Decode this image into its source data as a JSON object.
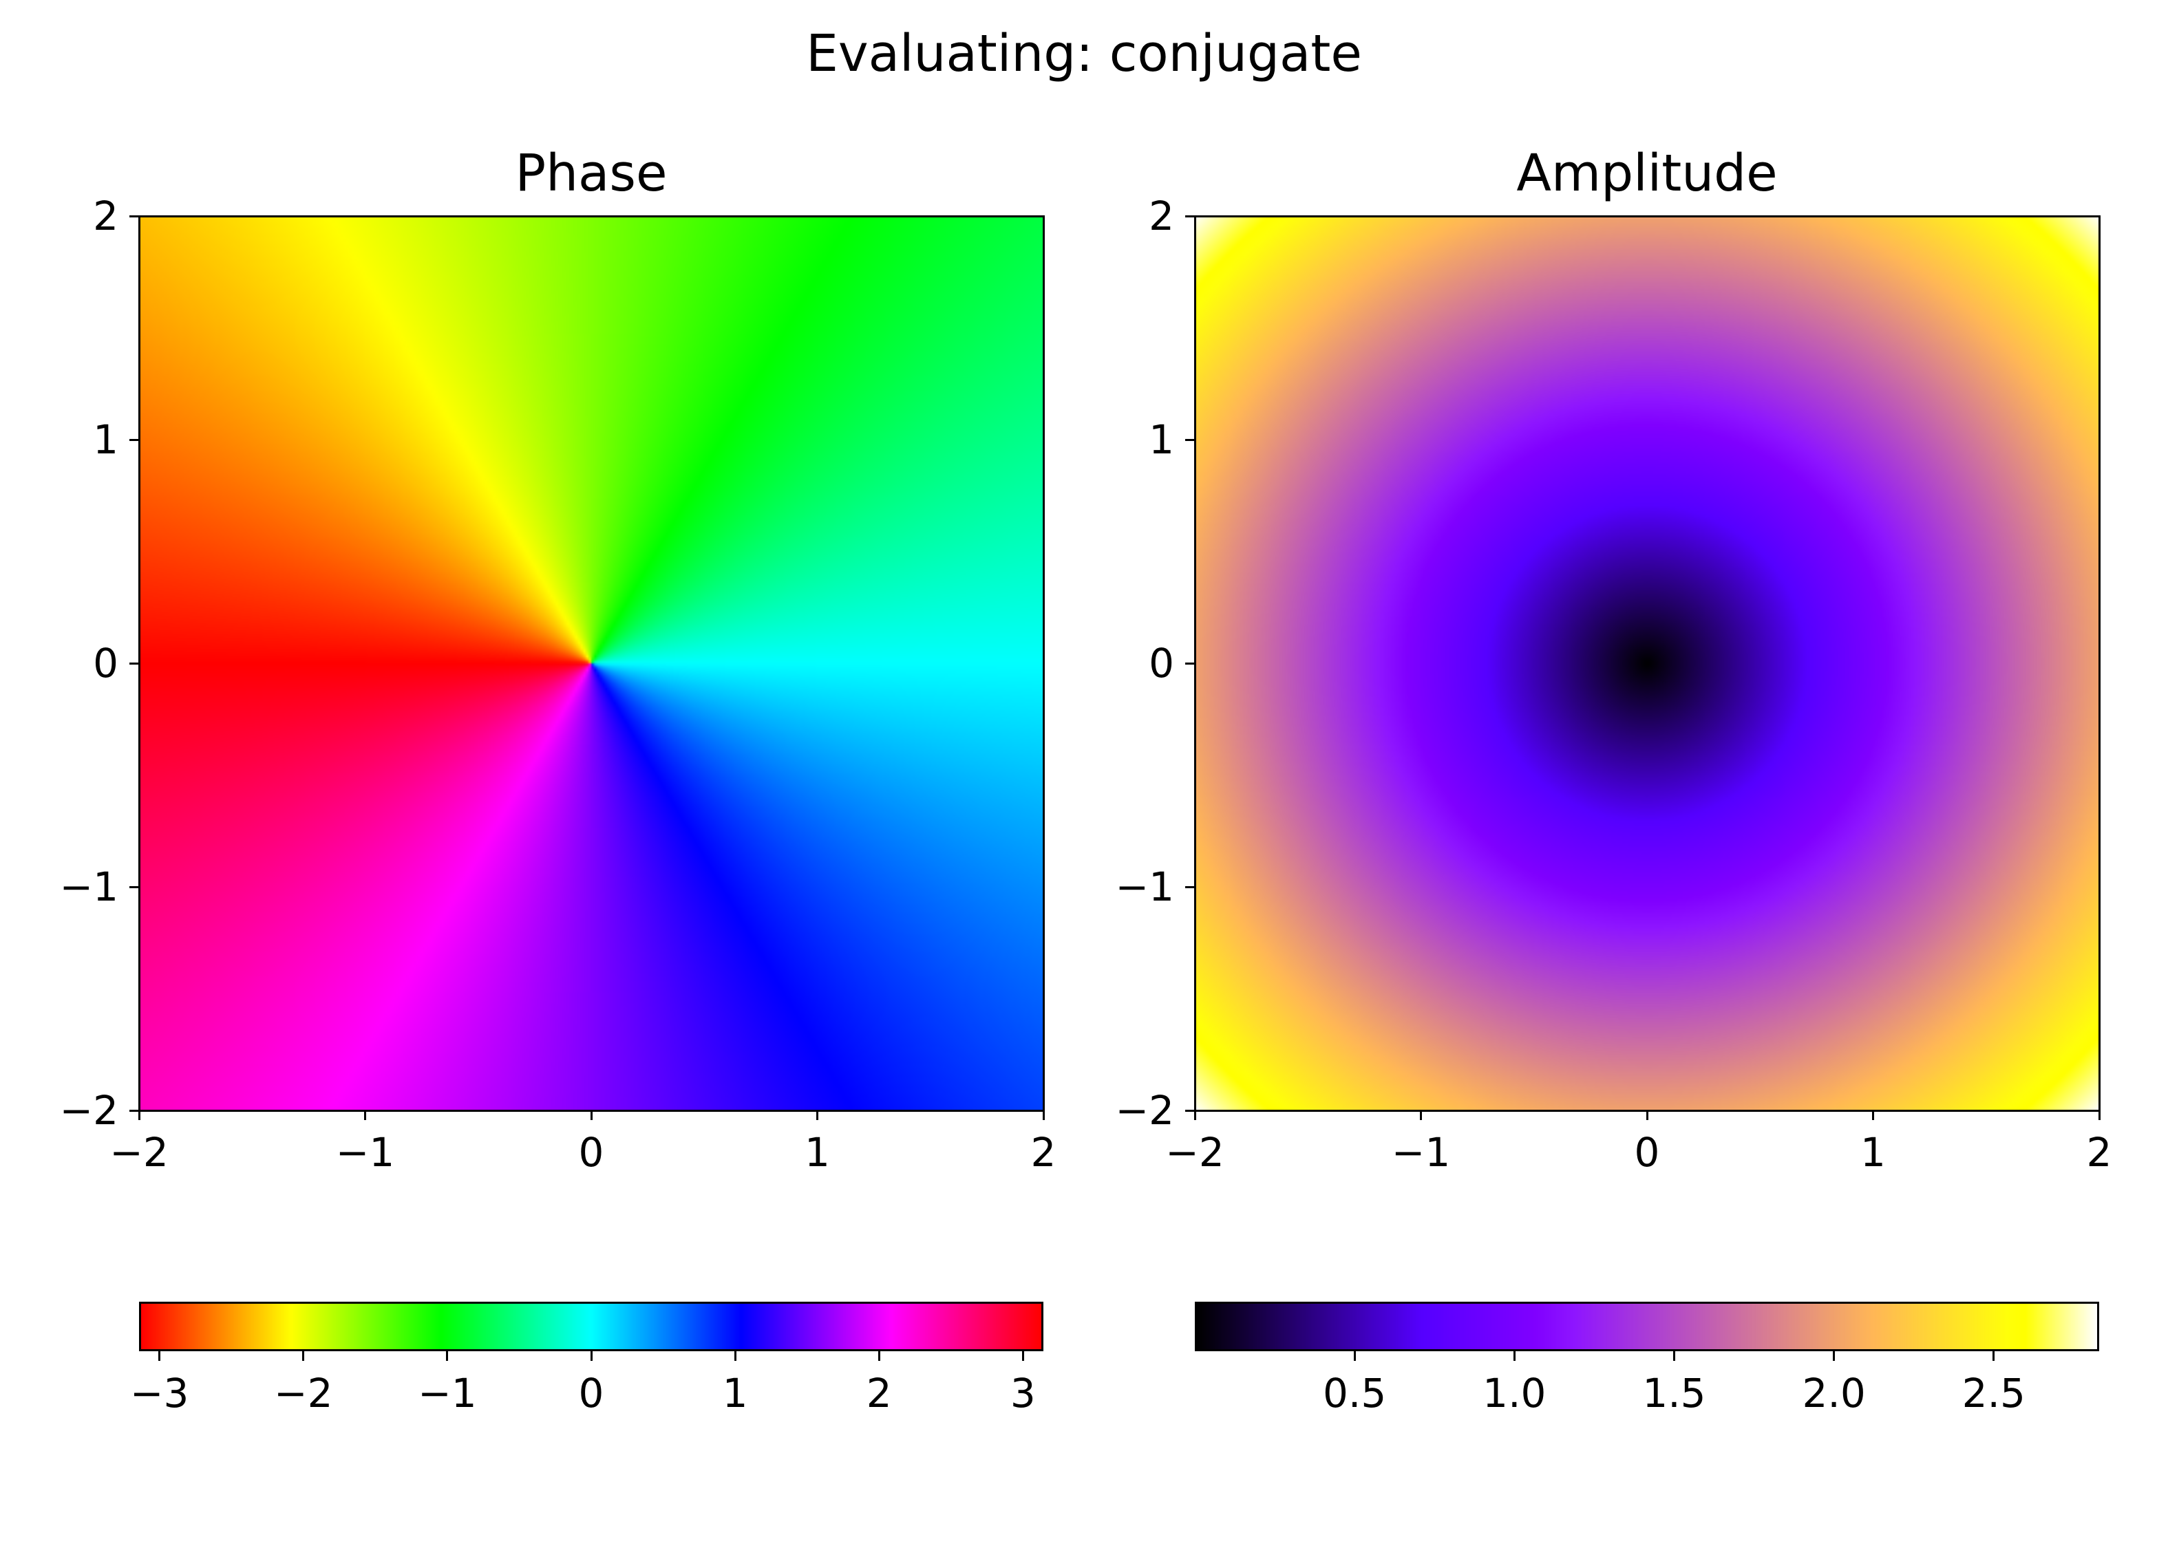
{
  "figure": {
    "suptitle": "Evaluating: conjugate"
  },
  "chart_data": [
    {
      "type": "heatmap",
      "title": "Phase",
      "function": "conjugate",
      "quantity": "phase",
      "xlim": [
        -2,
        2
      ],
      "ylim": [
        -2,
        2
      ],
      "xticks": [
        -2,
        -1,
        0,
        1,
        2
      ],
      "yticks": [
        -2,
        -1,
        0,
        1,
        2
      ],
      "colormap": "hsv",
      "colorbar": {
        "orientation": "horizontal",
        "range": [
          -3.1416,
          3.1416
        ],
        "ticks": [
          -3,
          -2,
          -1,
          0,
          1,
          2,
          3
        ]
      }
    },
    {
      "type": "heatmap",
      "title": "Amplitude",
      "function": "conjugate",
      "quantity": "amplitude",
      "xlim": [
        -2,
        2
      ],
      "ylim": [
        -2,
        2
      ],
      "xticks": [
        -2,
        -1,
        0,
        1,
        2
      ],
      "yticks": [
        -2,
        -1,
        0,
        1,
        2
      ],
      "colormap": "gnuplot2",
      "colorbar": {
        "orientation": "horizontal",
        "range": [
          0.0,
          2.83
        ],
        "ticks": [
          0.5,
          1.0,
          1.5,
          2.0,
          2.5
        ]
      }
    }
  ]
}
